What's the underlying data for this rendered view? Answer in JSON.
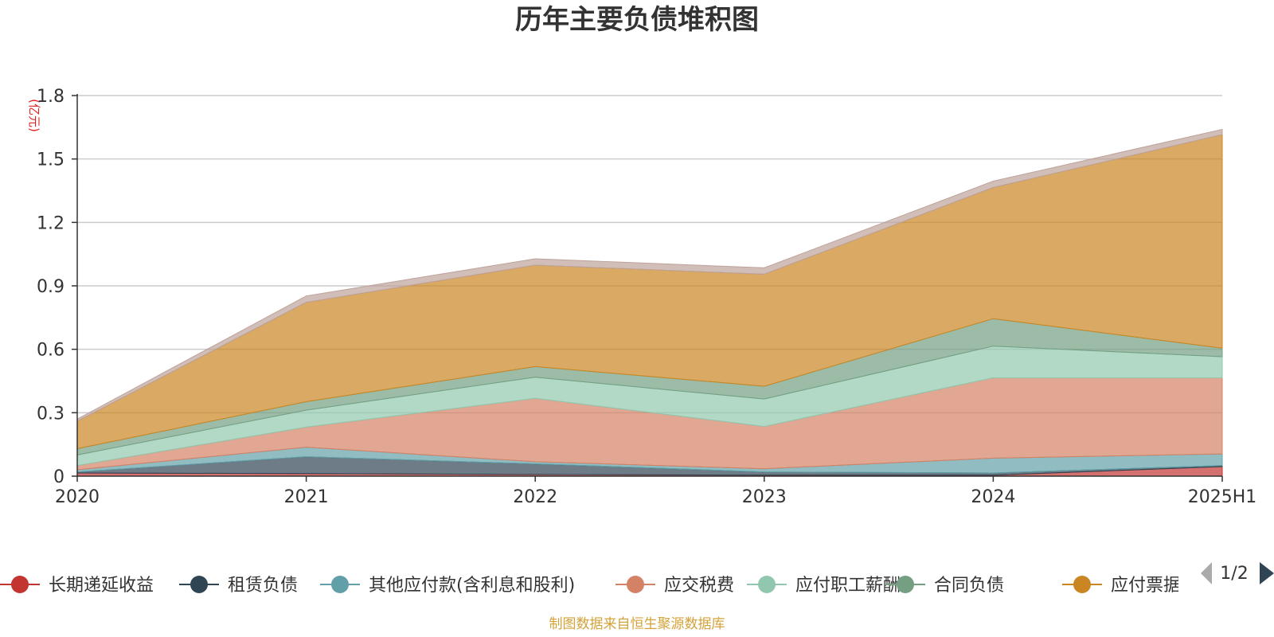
{
  "chart_data": {
    "type": "area",
    "stacked": true,
    "title": "历年主要负债堆积图",
    "unit_label": "(亿元)",
    "categories": [
      "2020",
      "2021",
      "2022",
      "2023",
      "2024",
      "2025H1"
    ],
    "ylim": [
      0,
      1.8
    ],
    "yticks": [
      "0",
      "0.3",
      "0.6",
      "0.9",
      "1.2",
      "1.5",
      "1.8"
    ],
    "grid": true,
    "series": [
      {
        "name": "长期递延收益",
        "color": "#c23531",
        "values": [
          0.015,
          0.012,
          0.008,
          0.005,
          0.005,
          0.045
        ]
      },
      {
        "name": "租赁负债",
        "color": "#2f4554",
        "values": [
          0.005,
          0.08,
          0.05,
          0.015,
          0.01,
          0.005
        ]
      },
      {
        "name": "其他应付款(含利息和股利)",
        "color": "#61a0a8",
        "values": [
          0.01,
          0.045,
          0.01,
          0.015,
          0.07,
          0.055
        ]
      },
      {
        "name": "应交税费",
        "color": "#d48265",
        "values": [
          0.02,
          0.095,
          0.3,
          0.2,
          0.38,
          0.36
        ]
      },
      {
        "name": "应付职工薪酬",
        "color": "#91c7ae",
        "values": [
          0.05,
          0.08,
          0.1,
          0.13,
          0.15,
          0.1
        ]
      },
      {
        "name": "合同负债",
        "color": "#749f83",
        "values": [
          0.03,
          0.04,
          0.05,
          0.06,
          0.13,
          0.04
        ]
      },
      {
        "name": "应付票据及应付账款",
        "color": "#ca8622",
        "values": [
          0.13,
          0.47,
          0.48,
          0.53,
          0.62,
          1.01
        ]
      },
      {
        "name": "",
        "color": "#bda29a",
        "values": [
          0.01,
          0.03,
          0.03,
          0.03,
          0.03,
          0.025
        ]
      }
    ],
    "legend": {
      "position": "bottom",
      "visible_labels": [
        "长期递延收益",
        "租赁负债",
        "其他应付款(含利息和股利)",
        "应交税费",
        "应付职工薪酬",
        "合同负债",
        "应付票据及应付账款"
      ],
      "page": "1/2"
    },
    "source": "制图数据来自恒生聚源数据库"
  }
}
